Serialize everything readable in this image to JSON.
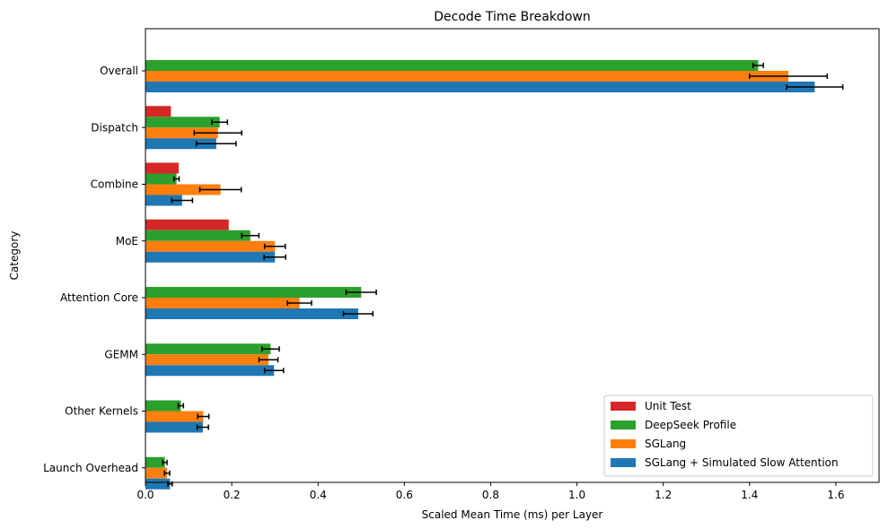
{
  "chart_data": {
    "type": "bar",
    "orientation": "horizontal",
    "title": "Decode Time Breakdown",
    "xlabel": "Scaled Mean Time (ms) per Layer",
    "ylabel": "Category",
    "xlim": [
      0,
      1.7
    ],
    "xticks": [
      "0.0",
      "0.2",
      "0.4",
      "0.6",
      "0.8",
      "1.0",
      "1.2",
      "1.4",
      "1.6"
    ],
    "categories": [
      "Overall",
      "Dispatch",
      "Combine",
      "MoE",
      "Attention Core",
      "GEMM",
      "Other Kernels",
      "Launch Overhead"
    ],
    "legend_position": "lower right",
    "grid": false,
    "series": [
      {
        "name": "Unit Test",
        "color": "#d62728",
        "values": [
          0,
          0.059,
          0.077,
          0.193,
          0,
          0,
          0,
          0
        ],
        "errors": [
          null,
          null,
          null,
          null,
          null,
          null,
          null,
          null
        ]
      },
      {
        "name": "DeepSeek Profile",
        "color": "#2ca02c",
        "values": [
          1.42,
          0.172,
          0.072,
          0.243,
          0.5,
          0.29,
          0.082,
          0.045
        ],
        "errors": [
          0.012,
          0.018,
          0.006,
          0.02,
          0.035,
          0.02,
          0.006,
          0.005
        ]
      },
      {
        "name": "SGLang",
        "color": "#ff7f0e",
        "values": [
          1.49,
          0.168,
          0.174,
          0.3,
          0.357,
          0.285,
          0.134,
          0.05
        ],
        "errors": [
          0.09,
          0.055,
          0.048,
          0.024,
          0.028,
          0.022,
          0.013,
          0.006
        ]
      },
      {
        "name": "SGLang + Simulated Slow Attention",
        "color": "#1f77b4",
        "values": [
          1.551,
          0.164,
          0.085,
          0.3,
          0.493,
          0.298,
          0.133,
          0.057
        ],
        "errors": [
          0.065,
          0.046,
          0.024,
          0.025,
          0.034,
          0.022,
          0.013,
          0.005
        ]
      }
    ]
  }
}
